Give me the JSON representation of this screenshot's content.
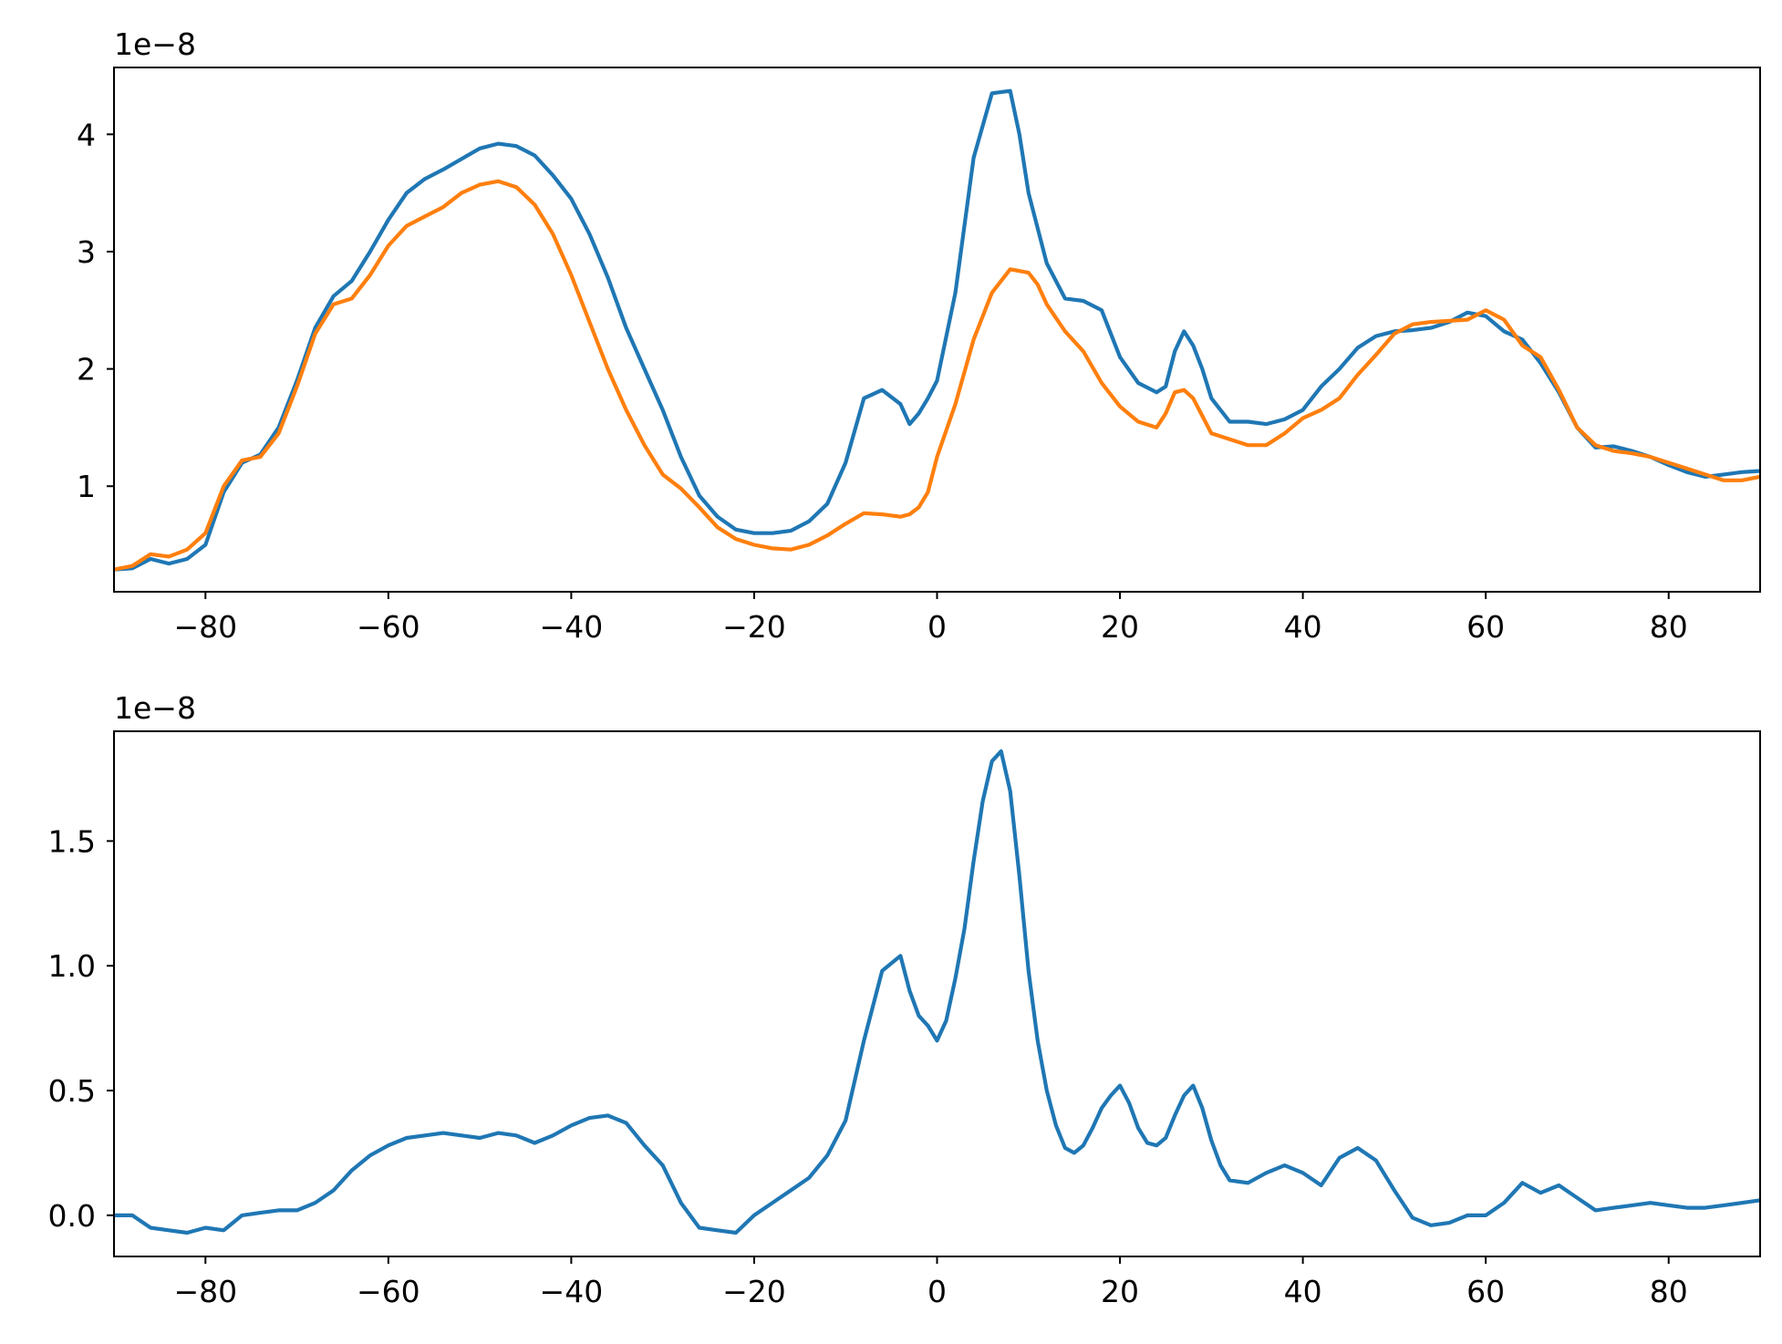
{
  "chart_data": [
    {
      "type": "line",
      "title": "",
      "xlabel": "",
      "ylabel": "",
      "y_offset_text": "1e−8",
      "xlim": [
        -90,
        90
      ],
      "ylim": [
        0.1,
        4.57
      ],
      "xticks": [
        -80,
        -60,
        -40,
        -20,
        0,
        20,
        40,
        60,
        80
      ],
      "xtick_labels": [
        "−80",
        "−60",
        "−40",
        "−20",
        "0",
        "20",
        "40",
        "60",
        "80"
      ],
      "yticks": [
        1,
        2,
        3,
        4
      ],
      "ytick_labels": [
        "1",
        "2",
        "3",
        "4"
      ],
      "grid": false,
      "series": [
        {
          "color": "#1f77b4",
          "x": [
            -90,
            -88,
            -86,
            -84,
            -82,
            -80,
            -78,
            -76,
            -74,
            -72,
            -70,
            -68,
            -66,
            -64,
            -62,
            -60,
            -58,
            -56,
            -54,
            -52,
            -50,
            -48,
            -46,
            -44,
            -42,
            -40,
            -38,
            -36,
            -34,
            -32,
            -30,
            -28,
            -26,
            -24,
            -22,
            -20,
            -18,
            -16,
            -14,
            -12,
            -10,
            -8,
            -6,
            -4,
            -3,
            -2,
            -1,
            0,
            2,
            4,
            6,
            8,
            9,
            10,
            12,
            14,
            16,
            18,
            20,
            22,
            24,
            25,
            26,
            27,
            28,
            29,
            30,
            32,
            34,
            36,
            38,
            40,
            42,
            44,
            46,
            48,
            50,
            52,
            54,
            56,
            58,
            60,
            62,
            64,
            66,
            68,
            70,
            72,
            74,
            76,
            78,
            80,
            82,
            84,
            86,
            88,
            90
          ],
          "values": [
            0.29,
            0.3,
            0.38,
            0.34,
            0.38,
            0.5,
            0.95,
            1.2,
            1.27,
            1.5,
            1.9,
            2.35,
            2.62,
            2.75,
            3.0,
            3.27,
            3.5,
            3.62,
            3.7,
            3.79,
            3.88,
            3.92,
            3.9,
            3.82,
            3.65,
            3.45,
            3.15,
            2.78,
            2.35,
            2.0,
            1.65,
            1.25,
            0.92,
            0.74,
            0.63,
            0.6,
            0.6,
            0.62,
            0.7,
            0.85,
            1.2,
            1.75,
            1.82,
            1.7,
            1.53,
            1.62,
            1.75,
            1.9,
            2.65,
            3.8,
            4.35,
            4.37,
            4.0,
            3.5,
            2.9,
            2.6,
            2.58,
            2.5,
            2.1,
            1.88,
            1.8,
            1.85,
            2.15,
            2.32,
            2.2,
            2.0,
            1.75,
            1.55,
            1.55,
            1.53,
            1.57,
            1.65,
            1.85,
            2.0,
            2.18,
            2.28,
            2.32,
            2.33,
            2.35,
            2.4,
            2.48,
            2.45,
            2.32,
            2.25,
            2.05,
            1.8,
            1.5,
            1.33,
            1.34,
            1.3,
            1.25,
            1.18,
            1.12,
            1.08,
            1.1,
            1.12,
            1.13
          ]
        },
        {
          "color": "#ff7f0e",
          "x": [
            -90,
            -88,
            -86,
            -84,
            -82,
            -80,
            -78,
            -76,
            -74,
            -72,
            -70,
            -68,
            -66,
            -64,
            -62,
            -60,
            -58,
            -56,
            -54,
            -52,
            -50,
            -48,
            -46,
            -44,
            -42,
            -40,
            -38,
            -36,
            -34,
            -32,
            -30,
            -28,
            -26,
            -24,
            -22,
            -20,
            -18,
            -16,
            -14,
            -12,
            -10,
            -8,
            -6,
            -4,
            -3,
            -2,
            -1,
            0,
            2,
            4,
            6,
            8,
            10,
            11,
            12,
            14,
            16,
            18,
            20,
            22,
            24,
            25,
            26,
            27,
            28,
            29,
            30,
            32,
            34,
            36,
            38,
            40,
            42,
            44,
            46,
            48,
            50,
            52,
            54,
            56,
            58,
            60,
            62,
            64,
            66,
            68,
            70,
            72,
            74,
            76,
            78,
            80,
            82,
            84,
            86,
            88,
            90
          ],
          "values": [
            0.29,
            0.32,
            0.42,
            0.4,
            0.46,
            0.6,
            1.0,
            1.22,
            1.25,
            1.45,
            1.85,
            2.3,
            2.55,
            2.6,
            2.8,
            3.05,
            3.22,
            3.3,
            3.38,
            3.5,
            3.57,
            3.6,
            3.55,
            3.4,
            3.15,
            2.8,
            2.4,
            2.0,
            1.65,
            1.35,
            1.1,
            0.98,
            0.82,
            0.65,
            0.55,
            0.5,
            0.47,
            0.46,
            0.5,
            0.58,
            0.68,
            0.77,
            0.76,
            0.74,
            0.76,
            0.82,
            0.95,
            1.25,
            1.7,
            2.25,
            2.65,
            2.85,
            2.82,
            2.72,
            2.55,
            2.32,
            2.15,
            1.88,
            1.68,
            1.55,
            1.5,
            1.62,
            1.8,
            1.82,
            1.75,
            1.6,
            1.45,
            1.4,
            1.35,
            1.35,
            1.45,
            1.58,
            1.65,
            1.75,
            1.95,
            2.12,
            2.3,
            2.38,
            2.4,
            2.41,
            2.42,
            2.5,
            2.42,
            2.2,
            2.1,
            1.82,
            1.5,
            1.35,
            1.3,
            1.28,
            1.25,
            1.2,
            1.15,
            1.1,
            1.05,
            1.05,
            1.08
          ]
        }
      ]
    },
    {
      "type": "line",
      "title": "",
      "xlabel": "",
      "ylabel": "",
      "y_offset_text": "1e−8",
      "xlim": [
        -90,
        90
      ],
      "ylim": [
        -0.165,
        1.94
      ],
      "xticks": [
        -80,
        -60,
        -40,
        -20,
        0,
        20,
        40,
        60,
        80
      ],
      "xtick_labels": [
        "−80",
        "−60",
        "−40",
        "−20",
        "0",
        "20",
        "40",
        "60",
        "80"
      ],
      "yticks": [
        0.0,
        0.5,
        1.0,
        1.5
      ],
      "ytick_labels": [
        "0.0",
        "0.5",
        "1.0",
        "1.5"
      ],
      "grid": false,
      "series": [
        {
          "color": "#1f77b4",
          "x": [
            -90,
            -88,
            -86,
            -84,
            -82,
            -80,
            -78,
            -76,
            -74,
            -72,
            -70,
            -68,
            -66,
            -64,
            -62,
            -60,
            -58,
            -56,
            -54,
            -52,
            -50,
            -48,
            -46,
            -44,
            -42,
            -40,
            -38,
            -36,
            -34,
            -32,
            -30,
            -28,
            -26,
            -24,
            -22,
            -20,
            -18,
            -16,
            -14,
            -12,
            -10,
            -8,
            -6,
            -4,
            -3,
            -2,
            -1,
            0,
            1,
            2,
            3,
            4,
            5,
            6,
            7,
            8,
            9,
            10,
            11,
            12,
            13,
            14,
            15,
            16,
            17,
            18,
            19,
            20,
            21,
            22,
            23,
            24,
            25,
            26,
            27,
            28,
            29,
            30,
            31,
            32,
            34,
            36,
            38,
            40,
            42,
            44,
            46,
            48,
            50,
            52,
            54,
            56,
            58,
            60,
            62,
            64,
            66,
            68,
            70,
            72,
            74,
            76,
            78,
            80,
            82,
            84,
            86,
            88,
            90
          ],
          "values": [
            0.0,
            0.0,
            -0.05,
            -0.06,
            -0.07,
            -0.05,
            -0.06,
            0.0,
            0.01,
            0.02,
            0.02,
            0.05,
            0.1,
            0.18,
            0.24,
            0.28,
            0.31,
            0.32,
            0.33,
            0.32,
            0.31,
            0.33,
            0.32,
            0.29,
            0.32,
            0.36,
            0.39,
            0.4,
            0.37,
            0.28,
            0.2,
            0.05,
            -0.05,
            -0.06,
            -0.07,
            0.0,
            0.05,
            0.1,
            0.15,
            0.24,
            0.38,
            0.7,
            0.98,
            1.04,
            0.9,
            0.8,
            0.76,
            0.7,
            0.78,
            0.95,
            1.15,
            1.42,
            1.66,
            1.82,
            1.86,
            1.7,
            1.36,
            0.98,
            0.7,
            0.5,
            0.36,
            0.27,
            0.25,
            0.28,
            0.35,
            0.43,
            0.48,
            0.52,
            0.45,
            0.35,
            0.29,
            0.28,
            0.31,
            0.4,
            0.48,
            0.52,
            0.43,
            0.3,
            0.2,
            0.14,
            0.13,
            0.17,
            0.2,
            0.17,
            0.12,
            0.23,
            0.27,
            0.22,
            0.1,
            -0.01,
            -0.04,
            -0.03,
            0.0,
            0.0,
            0.05,
            0.13,
            0.09,
            0.12,
            0.07,
            0.02,
            0.03,
            0.04,
            0.05,
            0.04,
            0.03,
            0.03,
            0.04,
            0.05,
            0.06
          ]
        }
      ]
    }
  ]
}
